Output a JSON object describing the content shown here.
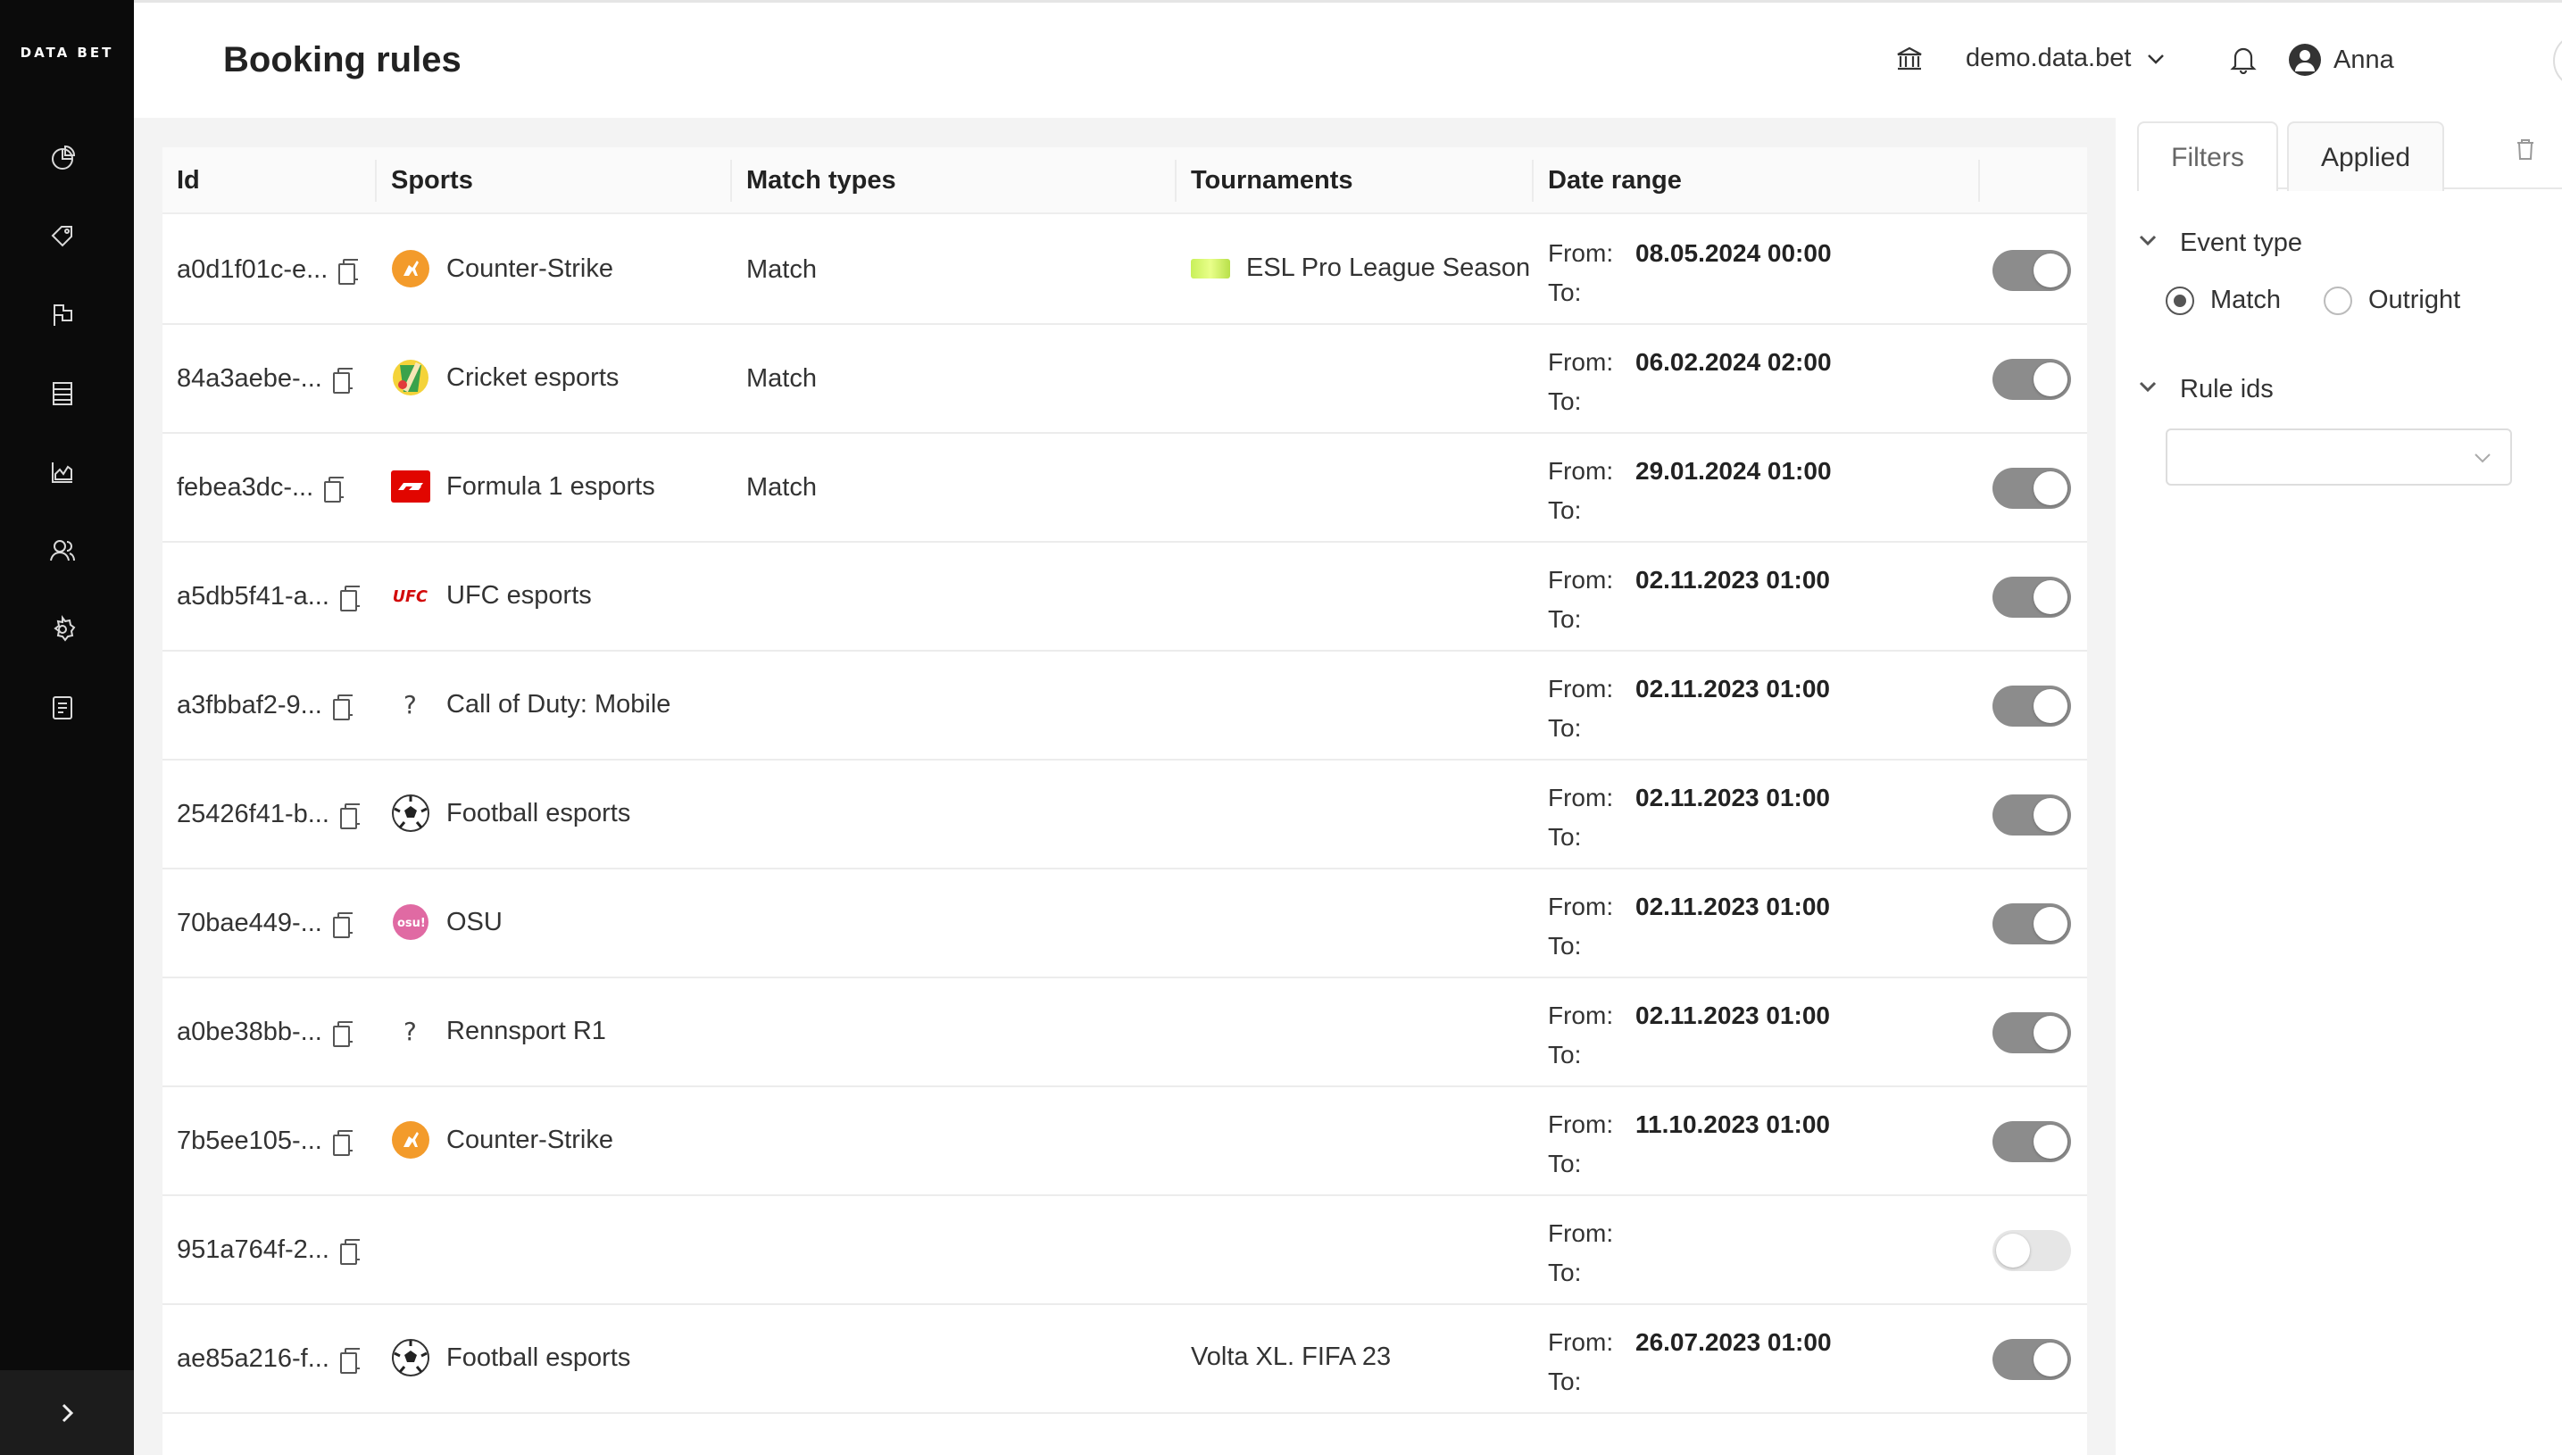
{
  "brand": {
    "logo_text": "DATA BET"
  },
  "header": {
    "title": "Booking rules",
    "domain": "demo.data.bet",
    "user": "Anna"
  },
  "table": {
    "columns": [
      "Id",
      "Sports",
      "Match types",
      "Tournaments",
      "Date range"
    ],
    "from_label": "From:",
    "to_label": "To:",
    "rows": [
      {
        "id": "a0d1f01c-e...",
        "sport": "Counter-Strike",
        "sport_icon": "counter-strike-icon",
        "match_type": "Match",
        "tournament": "ESL Pro League Season",
        "from": "08.05.2024 00:00",
        "to": "",
        "enabled": true
      },
      {
        "id": "84a3aebe-...",
        "sport": "Cricket esports",
        "sport_icon": "cricket-icon",
        "match_type": "Match",
        "tournament": "",
        "from": "06.02.2024 02:00",
        "to": "",
        "enabled": true
      },
      {
        "id": "febea3dc-...",
        "sport": "Formula 1 esports",
        "sport_icon": "formula1-icon",
        "match_type": "Match",
        "tournament": "",
        "from": "29.01.2024 01:00",
        "to": "",
        "enabled": true
      },
      {
        "id": "a5db5f41-a...",
        "sport": "UFC esports",
        "sport_icon": "ufc-icon",
        "match_type": "",
        "tournament": "",
        "from": "02.11.2023 01:00",
        "to": "",
        "enabled": true
      },
      {
        "id": "a3fbbaf2-9...",
        "sport": "Call of Duty: Mobile",
        "sport_icon": "question-icon",
        "match_type": "",
        "tournament": "",
        "from": "02.11.2023 01:00",
        "to": "",
        "enabled": true
      },
      {
        "id": "25426f41-b...",
        "sport": "Football esports",
        "sport_icon": "football-icon",
        "match_type": "",
        "tournament": "",
        "from": "02.11.2023 01:00",
        "to": "",
        "enabled": true
      },
      {
        "id": "70bae449-...",
        "sport": "OSU",
        "sport_icon": "osu-icon",
        "match_type": "",
        "tournament": "",
        "from": "02.11.2023 01:00",
        "to": "",
        "enabled": true
      },
      {
        "id": "a0be38bb-...",
        "sport": "Rennsport R1",
        "sport_icon": "question-icon",
        "match_type": "",
        "tournament": "",
        "from": "02.11.2023 01:00",
        "to": "",
        "enabled": true
      },
      {
        "id": "7b5ee105-...",
        "sport": "Counter-Strike",
        "sport_icon": "counter-strike-icon",
        "match_type": "",
        "tournament": "",
        "from": "11.10.2023 01:00",
        "to": "",
        "enabled": true
      },
      {
        "id": "951a764f-2...",
        "sport": "",
        "sport_icon": "",
        "match_type": "",
        "tournament": "",
        "from": "",
        "to": "",
        "enabled": false
      },
      {
        "id": "ae85a216-f...",
        "sport": "Football esports",
        "sport_icon": "football-icon",
        "match_type": "",
        "tournament": "Volta XL. FIFA 23",
        "from": "26.07.2023 01:00",
        "to": "",
        "enabled": true
      }
    ]
  },
  "filters": {
    "tabs": [
      "Filters",
      "Applied"
    ],
    "event_type": {
      "label": "Event type",
      "options": [
        "Match",
        "Outright"
      ],
      "selected": "Match"
    },
    "rule_ids": {
      "label": "Rule ids",
      "value": ""
    }
  },
  "colors": {
    "sidebar_bg": "#0b0b0b",
    "toggle_on": "#8c8c8c",
    "toggle_off": "#e6e6e6",
    "counter_strike": "#f39b2b",
    "formula1": "#e10600",
    "ufc": "#d20a0a",
    "osu": "#e06aa3"
  }
}
